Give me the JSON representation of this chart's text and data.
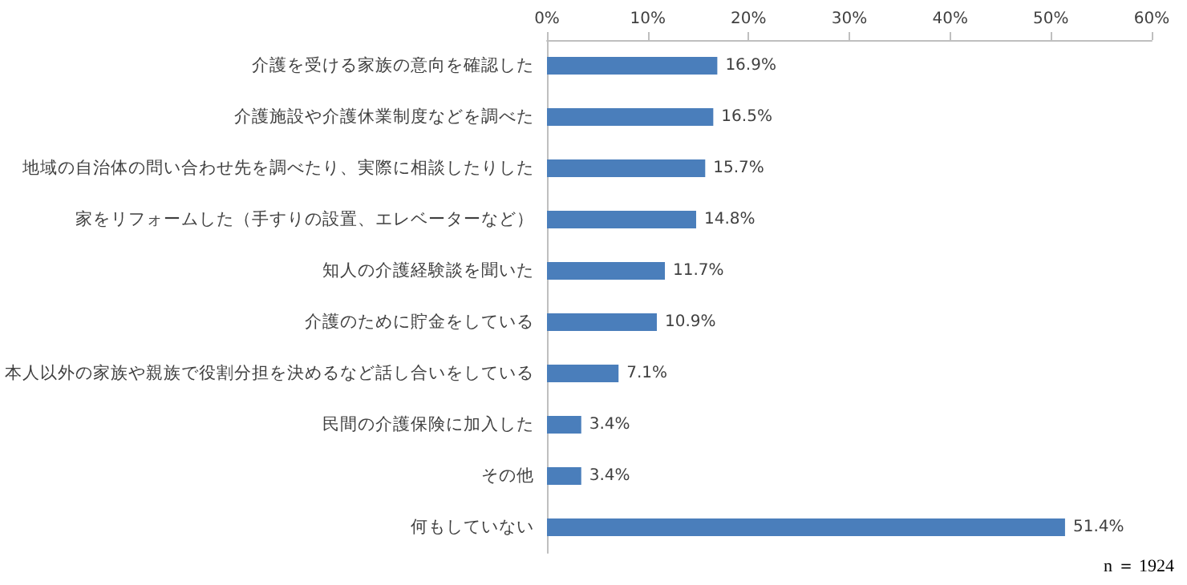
{
  "chart_data": {
    "type": "bar",
    "orientation": "horizontal",
    "categories": [
      "介護を受ける家族の意向を確認した",
      "介護施設や介護休業制度などを調べた",
      "地域の自治体の問い合わせ先を調べたり、実際に相談したりした",
      "家をリフォームした（手すりの設置、エレベーターなど）",
      "知人の介護経験談を聞いた",
      "介護のために貯金をしている",
      "本人以外の家族や親族で役割分担を決めるなど話し合いをしている",
      "民間の介護保険に加入した",
      "その他",
      "何もしていない"
    ],
    "values": [
      16.9,
      16.5,
      15.7,
      14.8,
      11.7,
      10.9,
      7.1,
      3.4,
      3.4,
      51.4
    ],
    "value_labels": [
      "16.9%",
      "16.5%",
      "15.7%",
      "14.8%",
      "11.7%",
      "10.9%",
      "7.1%",
      "3.4%",
      "3.4%",
      "51.4%"
    ],
    "color": "#4a7ebb",
    "xlim": [
      0,
      60
    ],
    "xticks": [
      {
        "value": 0,
        "label": "0%"
      },
      {
        "value": 10,
        "label": "10%"
      },
      {
        "value": 20,
        "label": "20%"
      },
      {
        "value": 30,
        "label": "30%"
      },
      {
        "value": 40,
        "label": "40%"
      },
      {
        "value": 50,
        "label": "50%"
      },
      {
        "value": 60,
        "label": "60%"
      }
    ],
    "grid": false,
    "annotations": [
      "n ＝ 1924"
    ]
  }
}
